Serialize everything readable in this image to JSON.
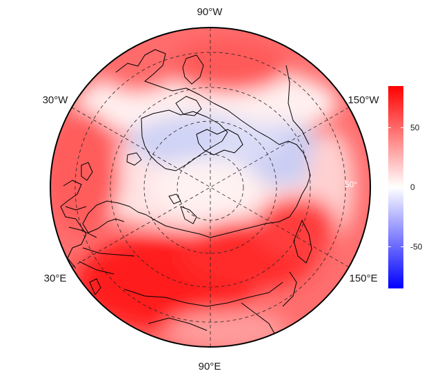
{
  "map": {
    "projection": "north-polar-stereographic",
    "field_pattern": "mostly positive (red), negative (blue) band across Greenland, Canadian Arctic and Alaska; strongest positive over central Asia",
    "longitude_labels": {
      "top": "90°W",
      "upper_left": "30°W",
      "upper_right": "150°W",
      "lower_left": "30°E",
      "lower_right": "150°E",
      "bottom": "90°E"
    },
    "latitude_label": "50°",
    "colors": {
      "negative": "#0000ff",
      "zero": "#ffffff",
      "positive": "#ff0000"
    }
  },
  "colorbar": {
    "ticks": [
      "50",
      "0",
      "-50"
    ],
    "tick_values": [
      50,
      0,
      -50
    ],
    "range": [
      -85,
      85
    ]
  }
}
